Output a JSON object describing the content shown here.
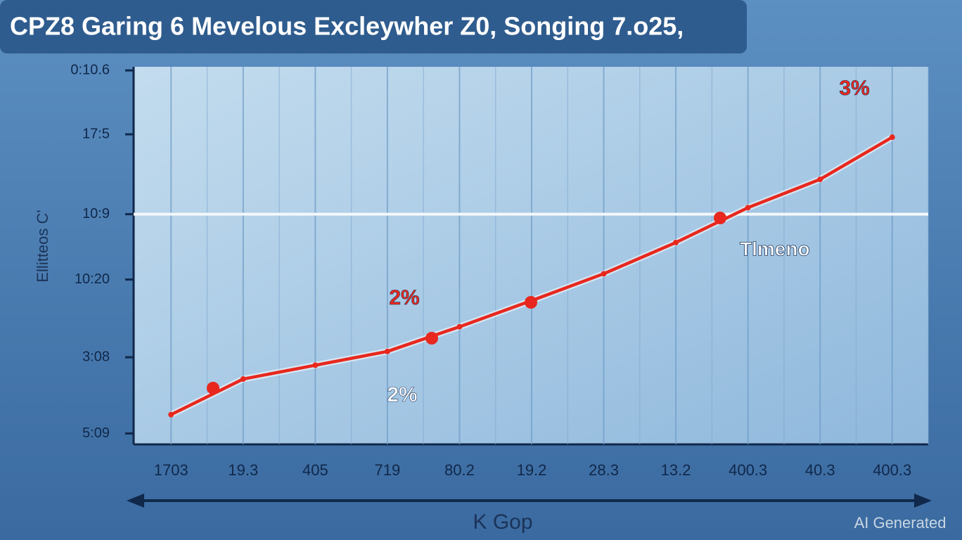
{
  "chart_data": {
    "type": "line",
    "title": "CPZ8 Garing 6 Mevelous Excleywher Z0, Songing 7.o25,",
    "y_label": "Ellitteos C'",
    "x_label": "K Gop",
    "categories": [
      "1703",
      "19.3",
      "405",
      "719",
      "80.2",
      "19.2",
      "28.3",
      "13.2",
      "400.3",
      "40.3",
      "400.3"
    ],
    "series": [
      {
        "name": "Tlmeno",
        "color": "#e8281e",
        "values": [
          0.26,
          0.75,
          0.94,
          1.13,
          1.47,
          1.83,
          2.2,
          2.63,
          3.11,
          3.5,
          4.08
        ]
      }
    ],
    "ylim": [
      -0.15,
      5.05
    ],
    "yticks": [
      {
        "value": 0,
        "label": "5:09"
      },
      {
        "value": 1.05,
        "label": "3:08"
      },
      {
        "value": 2.12,
        "label": "10:20"
      },
      {
        "value": 3.02,
        "label": "10:9"
      },
      {
        "value": 4.12,
        "label": "17:5"
      },
      {
        "value": 5.0,
        "label": "0:10.6"
      }
    ],
    "annotations": [
      "2%",
      "2%",
      "3%"
    ],
    "grid": true,
    "watermark": "AI Generated"
  }
}
